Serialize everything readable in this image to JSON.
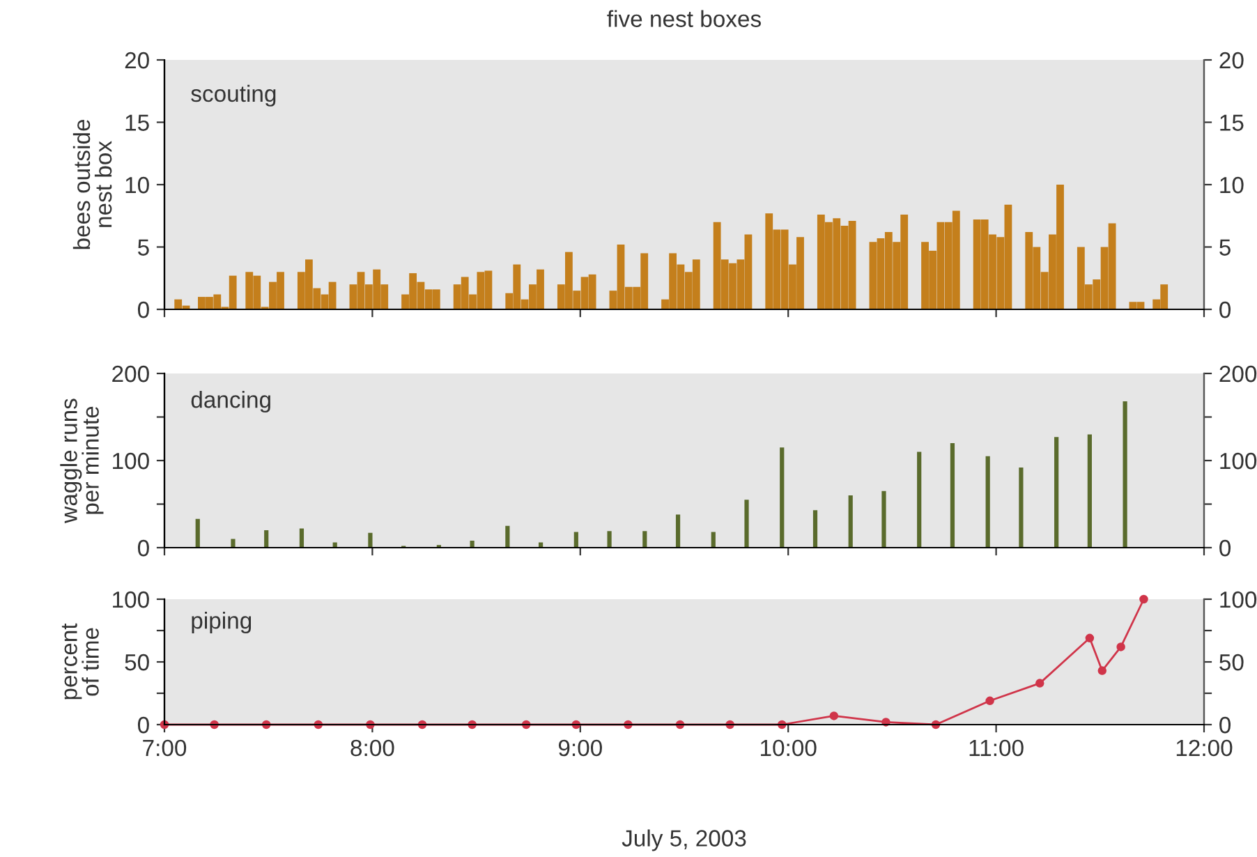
{
  "chart_data": [
    {
      "type": "bar",
      "title": "five nest boxes",
      "subtitle": "scouting",
      "ylabel": "bees outside\nnest box",
      "x": [
        7.066,
        7.104,
        7.141,
        7.179,
        7.216,
        7.254,
        7.291,
        7.329,
        7.408,
        7.445,
        7.483,
        7.521,
        7.558,
        7.658,
        7.695,
        7.733,
        7.771,
        7.808,
        7.908,
        7.945,
        7.983,
        8.021,
        8.058,
        8.158,
        8.195,
        8.233,
        8.271,
        8.308,
        8.408,
        8.445,
        8.483,
        8.521,
        8.558,
        8.658,
        8.695,
        8.733,
        8.771,
        8.808,
        8.908,
        8.945,
        8.983,
        9.021,
        9.058,
        9.158,
        9.195,
        9.233,
        9.271,
        9.308,
        9.408,
        9.445,
        9.483,
        9.521,
        9.558,
        9.658,
        9.695,
        9.733,
        9.771,
        9.808,
        9.908,
        9.945,
        9.983,
        10.021,
        10.058,
        10.158,
        10.195,
        10.233,
        10.271,
        10.308,
        10.408,
        10.445,
        10.483,
        10.521,
        10.558,
        10.658,
        10.695,
        10.733,
        10.771,
        10.808,
        10.908,
        10.945,
        10.983,
        11.021,
        11.058,
        11.158,
        11.195,
        11.233,
        11.271,
        11.308,
        11.408,
        11.445,
        11.483,
        11.521,
        11.558,
        11.658,
        11.695,
        11.733,
        11.771,
        11.808
      ],
      "values": [
        0.8,
        0.3,
        null,
        1.0,
        1.0,
        1.2,
        0.2,
        2.7,
        3.0,
        2.7,
        0.2,
        2.2,
        3.0,
        3.0,
        4.0,
        1.7,
        1.2,
        2.2,
        2.0,
        3.0,
        2.0,
        3.2,
        2.0,
        1.2,
        2.9,
        2.2,
        1.6,
        1.6,
        2.0,
        2.6,
        1.2,
        3.0,
        3.1,
        1.3,
        3.6,
        0.8,
        2.0,
        3.2,
        2.0,
        4.6,
        1.5,
        2.6,
        2.8,
        1.5,
        5.2,
        1.8,
        1.8,
        4.5,
        0.8,
        4.5,
        3.6,
        3.0,
        4.0,
        7.0,
        4.0,
        3.7,
        4.0,
        6.0,
        7.7,
        6.4,
        6.4,
        3.6,
        5.8,
        7.6,
        7.0,
        7.3,
        6.7,
        7.1,
        5.4,
        5.7,
        6.2,
        5.4,
        7.6,
        5.4,
        4.7,
        7.0,
        7.0,
        7.9,
        7.2,
        7.2,
        6.0,
        5.8,
        8.4,
        6.2,
        5.0,
        3.0,
        6.0,
        10.0,
        5.0,
        2.0,
        2.4,
        5.0,
        6.9,
        0.6,
        0.6,
        null,
        0.8,
        2.0
      ],
      "color": "#c47f1c",
      "xlim": [
        7,
        12
      ],
      "xticks": [
        {
          "value": 7,
          "label": null
        },
        {
          "value": 8,
          "label": null
        },
        {
          "value": 9,
          "label": null
        },
        {
          "value": 10,
          "label": null
        },
        {
          "value": 11,
          "label": null
        },
        {
          "value": 12,
          "label": null
        }
      ],
      "ylim": [
        0,
        20
      ],
      "yticks": [
        0,
        5,
        10,
        15,
        20
      ],
      "y2lim": [
        0,
        20
      ],
      "y2ticks": [
        0,
        5,
        10,
        15,
        20
      ],
      "tick_labels": "y",
      "grid": false,
      "legend": false
    },
    {
      "type": "bar",
      "subtitle": "dancing",
      "ylabel": "waggle runs\nper minute",
      "x": [
        7.16,
        7.33,
        7.49,
        7.66,
        7.82,
        7.99,
        8.15,
        8.32,
        8.48,
        8.65,
        8.81,
        8.98,
        9.14,
        9.31,
        9.47,
        9.64,
        9.8,
        9.97,
        10.13,
        10.3,
        10.46,
        10.63,
        10.79,
        10.96,
        11.12,
        11.29,
        11.45,
        11.62
      ],
      "values": [
        33,
        10,
        20,
        22,
        6,
        17,
        2,
        3,
        8,
        25,
        6,
        18,
        19,
        19,
        38,
        18,
        55,
        115,
        43,
        60,
        65,
        110,
        120,
        105,
        92,
        127,
        130,
        168
      ],
      "color": "#5a6b2c",
      "xlim": [
        7,
        12
      ],
      "xticks": [
        {
          "value": 7,
          "label": null
        },
        {
          "value": 8,
          "label": null
        },
        {
          "value": 9,
          "label": null
        },
        {
          "value": 10,
          "label": null
        },
        {
          "value": 11,
          "label": null
        },
        {
          "value": 12,
          "label": null
        }
      ],
      "ylim": [
        0,
        200
      ],
      "yticks": [
        0,
        {
          "value": 50,
          "label": null
        },
        100,
        {
          "value": 150,
          "label": null
        },
        200
      ],
      "y2lim": [
        0,
        200
      ],
      "y2ticks": [
        0,
        {
          "value": 50,
          "label": null
        },
        100,
        {
          "value": 150,
          "label": null
        },
        200
      ],
      "tick_labels": "y",
      "grid": false,
      "legend": false
    },
    {
      "type": "line",
      "subtitle": "piping",
      "ylabel": "percent\nof time",
      "xlabel": "July 5, 2003",
      "x": [
        7.0,
        7.24,
        7.49,
        7.74,
        7.99,
        8.24,
        8.48,
        8.74,
        8.98,
        9.23,
        9.48,
        9.72,
        9.97,
        10.22,
        10.47,
        10.71,
        10.97,
        11.21,
        11.45,
        11.51,
        11.6,
        11.71
      ],
      "values": [
        0,
        0,
        0,
        0,
        0,
        0,
        0,
        0,
        0,
        0,
        0,
        0,
        0,
        7,
        2,
        0,
        19,
        33,
        69,
        43,
        62,
        100
      ],
      "color": "#d0354a",
      "marker": "circle",
      "line_style": "solid",
      "xlim": [
        7,
        12
      ],
      "xticks": [
        {
          "value": 7,
          "label": "7:00"
        },
        {
          "value": 8,
          "label": "8:00"
        },
        {
          "value": 9,
          "label": "9:00"
        },
        {
          "value": 10,
          "label": "10:00"
        },
        {
          "value": 11,
          "label": "11:00"
        },
        {
          "value": 12,
          "label": "12:00"
        }
      ],
      "ylim": [
        0,
        100
      ],
      "yticks": [
        0,
        {
          "value": 25,
          "label": null
        },
        50,
        {
          "value": 75,
          "label": null
        },
        100
      ],
      "y2lim": [
        0,
        100
      ],
      "y2ticks": [
        0,
        {
          "value": 25,
          "label": null
        },
        50,
        {
          "value": 75,
          "label": null
        },
        100
      ],
      "grid": false,
      "legend": false
    }
  ]
}
